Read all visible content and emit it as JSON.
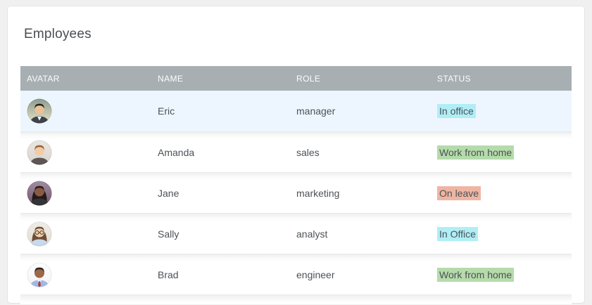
{
  "title": "Employees",
  "table": {
    "columns": [
      "AVATAR",
      "NAME",
      "ROLE",
      "STATUS"
    ]
  },
  "colors": {
    "header_bg": "#A8AFB3",
    "selected_row_bg": "#EDF6FE",
    "body_text": "#4C5257",
    "status_in_office_bg": "#B0EEF6",
    "status_wfh_bg": "#B5DBAA",
    "status_on_leave_bg": "#EFB5A3"
  },
  "status_styles": {
    "office": {
      "bg": "#B0EEF6"
    },
    "wfh": {
      "bg": "#B5DBAA"
    },
    "leave": {
      "bg": "#EFB5A3"
    }
  },
  "employees": [
    {
      "name": "Eric",
      "role": "manager",
      "status": "In office",
      "status_key": "office",
      "highlighted": true,
      "avatar": {
        "bg_top": "#8A9A8E",
        "bg_bottom": "#EAE3C4",
        "skin": "#E9C198",
        "hair": "#26211E",
        "shirt": "#3E434B",
        "collar": true,
        "tie": null,
        "glasses": false,
        "long_hair": false
      }
    },
    {
      "name": "Amanda",
      "role": "sales",
      "status": "Work from home",
      "status_key": "wfh",
      "highlighted": false,
      "avatar": {
        "bg_top": "#EAE7E3",
        "bg_bottom": "#D9D3CC",
        "skin": "#F2CBA8",
        "hair": "#9A5F33",
        "shirt": "#5C5654",
        "collar": false,
        "tie": null,
        "glasses": false,
        "long_hair": false
      }
    },
    {
      "name": "Jane",
      "role": "marketing",
      "status": "On leave",
      "status_key": "leave",
      "highlighted": false,
      "avatar": {
        "bg_top": "#A38EA2",
        "bg_bottom": "#6E556A",
        "skin": "#8A5A42",
        "hair": "#231B1B",
        "shirt": "#343336",
        "collar": false,
        "tie": null,
        "glasses": false,
        "long_hair": true
      }
    },
    {
      "name": "Sally",
      "role": "analyst",
      "status": "In Office",
      "status_key": "office",
      "highlighted": false,
      "avatar": {
        "bg_top": "#F0EDE8",
        "bg_bottom": "#E1DBD1",
        "skin": "#F0D0B0",
        "hair": "#6E4E38",
        "shirt": "#C9D9E9",
        "collar": false,
        "tie": null,
        "glasses": true,
        "long_hair": true
      }
    },
    {
      "name": "Brad",
      "role": "engineer",
      "status": "Work from home",
      "status_key": "wfh",
      "highlighted": false,
      "avatar": {
        "bg_top": "#FDFDFD",
        "bg_bottom": "#F4F4F7",
        "skin": "#9C6848",
        "hair": "#2E2420",
        "shirt": "#9FB9E6",
        "collar": true,
        "tie": "#B8392E",
        "glasses": false,
        "long_hair": false
      }
    }
  ]
}
